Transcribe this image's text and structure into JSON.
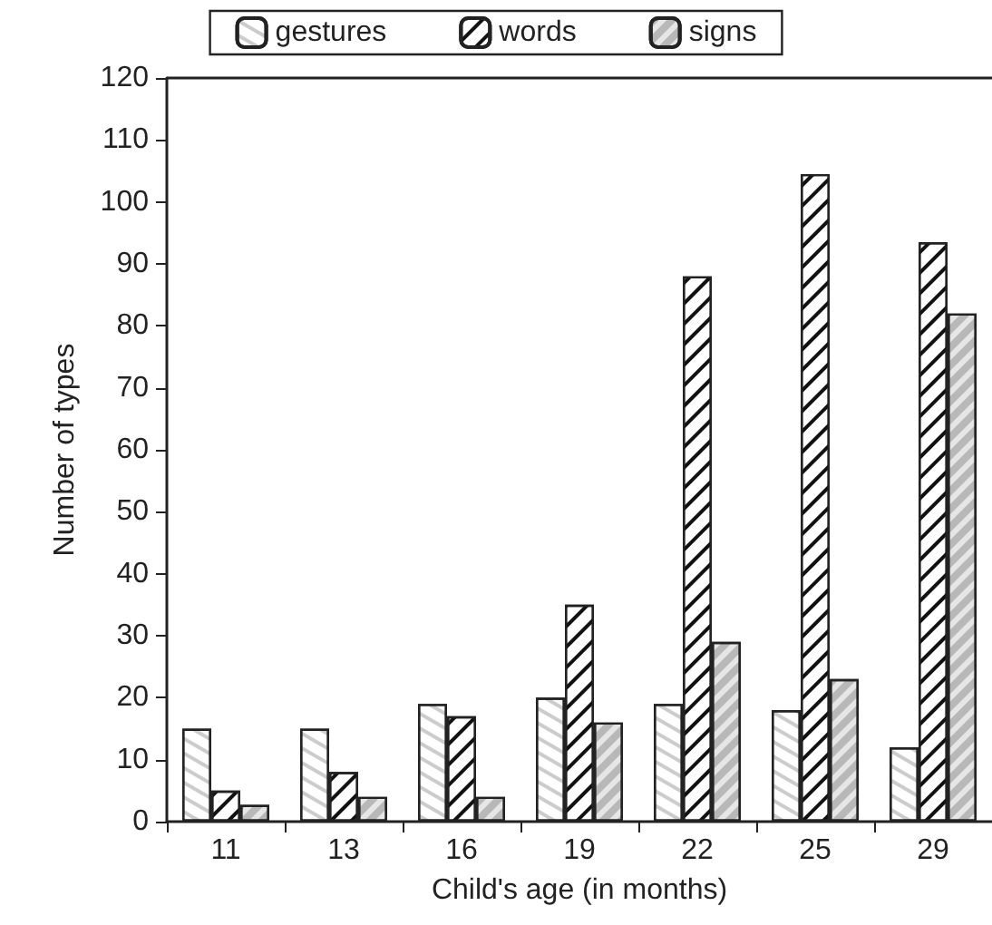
{
  "chart_data": {
    "type": "bar",
    "xlabel": "Child's age (in months)",
    "ylabel": "Number of types",
    "categories": [
      "11",
      "13",
      "16",
      "19",
      "22",
      "25",
      "29"
    ],
    "series": [
      {
        "name": "gestures",
        "color": "#ffffff",
        "values": [
          15,
          15,
          19,
          20,
          19,
          18,
          12
        ]
      },
      {
        "name": "words",
        "color": "#ffffff",
        "values": [
          5,
          8,
          17,
          35,
          88,
          104.5,
          93.5
        ]
      },
      {
        "name": "signs",
        "color": "#e6e6e6",
        "values": [
          2.7,
          4,
          4,
          16,
          29,
          23,
          82
        ]
      }
    ],
    "ylim": [
      0,
      120
    ],
    "yticks": [
      0,
      10,
      20,
      30,
      40,
      50,
      60,
      70,
      80,
      90,
      100,
      110,
      120
    ],
    "grid": false,
    "legend": "top"
  }
}
